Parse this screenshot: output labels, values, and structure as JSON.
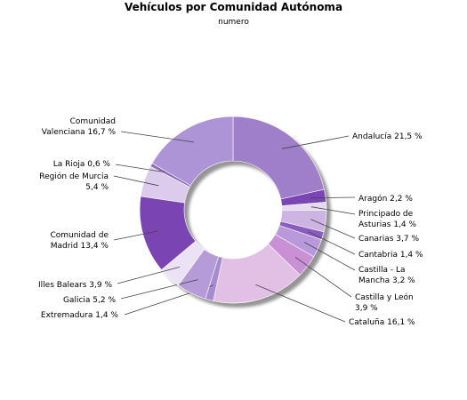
{
  "chart_data": {
    "type": "pie",
    "variant": "donut",
    "title": "Vehículos por Comunidad Autónoma",
    "subtitle": "numero",
    "unit": "%",
    "slices": [
      {
        "label": "Andalucía",
        "value": 21.5,
        "display": "21,5 %",
        "color": "#9f7fc9"
      },
      {
        "label": "Aragón",
        "value": 2.2,
        "display": "2,2 %",
        "color": "#7a46b4"
      },
      {
        "label": "Principado de Asturias",
        "value": 1.4,
        "display": "1,4 %",
        "color": "#e6daf2"
      },
      {
        "label": "Canarias",
        "value": 3.7,
        "display": "3,7 %",
        "color": "#cdb4e3"
      },
      {
        "label": "Cantabria",
        "value": 1.4,
        "display": "1,4 %",
        "color": "#8a5cc0"
      },
      {
        "label": "Castilla - La Mancha",
        "value": 3.2,
        "display": "3,2 %",
        "color": "#b899dc"
      },
      {
        "label": "Castilla y León",
        "value": 3.9,
        "display": "3,9 %",
        "color": "#c990d6"
      },
      {
        "label": "Cataluña",
        "value": 16.1,
        "display": "16,1 %",
        "color": "#e2c0e6"
      },
      {
        "label": "Extremadura",
        "value": 1.4,
        "display": "1,4 %",
        "color": "#a78bd2"
      },
      {
        "label": "Galicia",
        "value": 5.2,
        "display": "5,2 %",
        "color": "#b59bd7"
      },
      {
        "label": "Illes Balears",
        "value": 3.9,
        "display": "3,9 %",
        "color": "#ece2f5"
      },
      {
        "label": "Comunidad de Madrid",
        "value": 13.4,
        "display": "13,4 %",
        "color": "#7a45b3"
      },
      {
        "label": "Región de Murcia",
        "value": 5.4,
        "display": "5,4 %",
        "color": "#dccbec"
      },
      {
        "label": "La Rioja",
        "value": 0.6,
        "display": "0,6 %",
        "color": "#8f6ab9"
      },
      {
        "label": "Comunidad Valenciana",
        "value": 16.7,
        "display": "16,7 %",
        "color": "#ad94d6"
      }
    ],
    "labels": [
      {
        "lines": [
          "Andalucía 21,5 %"
        ]
      },
      {
        "lines": [
          "Aragón 2,2 %"
        ]
      },
      {
        "lines": [
          "Principado de",
          "Asturias 1,4 %"
        ]
      },
      {
        "lines": [
          "Canarias 3,7 %"
        ]
      },
      {
        "lines": [
          "Cantabria 1,4 %"
        ]
      },
      {
        "lines": [
          "Castilla - La",
          "Mancha 3,2 %"
        ]
      },
      {
        "lines": [
          "Castilla y León",
          "3,9 %"
        ]
      },
      {
        "lines": [
          "Cataluña 16,1 %"
        ]
      },
      {
        "lines": [
          "Extremadura 1,4 %"
        ]
      },
      {
        "lines": [
          "Galicia 5,2 %"
        ]
      },
      {
        "lines": [
          "Illes Balears 3,9 %"
        ]
      },
      {
        "lines": [
          "Comunidad de",
          "Madrid 13,4 %"
        ]
      },
      {
        "lines": [
          "Región de Murcia",
          "5,4 %"
        ]
      },
      {
        "lines": [
          "La Rioja 0,6 %"
        ]
      },
      {
        "lines": [
          "Comunidad",
          "Valenciana 16,7 %"
        ]
      }
    ]
  }
}
